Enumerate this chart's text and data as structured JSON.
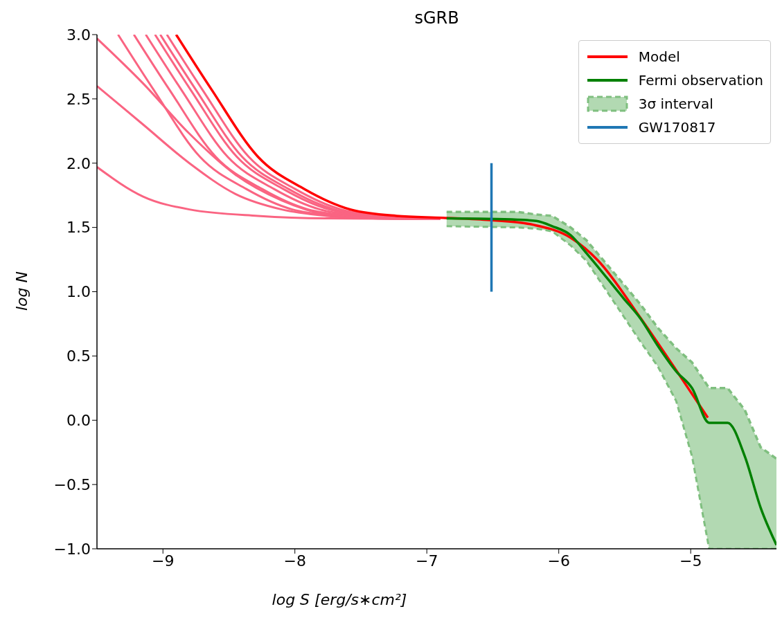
{
  "chart_data": {
    "type": "line",
    "title": "sGRB",
    "xlabel": "log S [erg/s∗cm²]",
    "ylabel": "log N",
    "xlim": [
      -9.5,
      -4.35
    ],
    "xticks": [
      -9,
      -8,
      -7,
      -6,
      -5
    ],
    "ylim": [
      -1.0,
      3.0
    ],
    "yticks": [
      {
        "value": -1.0,
        "label": "−1.0"
      },
      {
        "value": -0.5,
        "label": "−0.5"
      },
      {
        "value": 0.0,
        "label": "0.0"
      },
      {
        "value": 0.5,
        "label": "0.5"
      },
      {
        "value": 1.0,
        "label": "1.0"
      },
      {
        "value": 1.5,
        "label": "1.5"
      },
      {
        "value": 2.0,
        "label": "2.0"
      },
      {
        "value": 2.5,
        "label": "2.5"
      },
      {
        "value": 3.0,
        "label": "3.0"
      }
    ],
    "grid": false,
    "legend": "top right",
    "marker": "none",
    "line_style": "solid",
    "series": [
      {
        "color": "#fa6482",
        "x": [
          -9.5,
          -9.15,
          -8.8,
          -8.28,
          -7.76,
          -6.9
        ],
        "values": [
          1.97,
          1.74,
          1.64,
          1.59,
          1.57,
          1.565
        ]
      },
      {
        "color": "#fa6482",
        "x": [
          -9.5,
          -9.15,
          -8.8,
          -8.45,
          -8.1,
          -7.76,
          -7.41,
          -6.9
        ],
        "values": [
          2.6,
          2.3,
          2.0,
          1.76,
          1.64,
          1.59,
          1.57,
          1.565
        ]
      },
      {
        "color": "#fa6482",
        "x": [
          -9.5,
          -9.15,
          -8.8,
          -8.45,
          -8.1,
          -7.76,
          -7.41,
          -6.9
        ],
        "values": [
          2.97,
          2.62,
          2.23,
          1.91,
          1.71,
          1.6,
          1.57,
          1.565
        ]
      },
      {
        "color": "#fa6482",
        "x": [
          -9.34,
          -9.07,
          -8.72,
          -8.37,
          -8.02,
          -7.67,
          -7.32,
          -6.9
        ],
        "values": [
          3.0,
          2.57,
          2.05,
          1.8,
          1.64,
          1.59,
          1.57,
          1.565
        ]
      },
      {
        "color": "#fa6482",
        "x": [
          -9.22,
          -8.95,
          -8.6,
          -8.25,
          -7.9,
          -7.55,
          -7.2,
          -6.9
        ],
        "values": [
          3.0,
          2.57,
          2.05,
          1.8,
          1.64,
          1.59,
          1.57,
          1.565
        ]
      },
      {
        "color": "#fa6482",
        "x": [
          -9.13,
          -8.86,
          -8.51,
          -8.16,
          -7.81,
          -7.46,
          -7.11,
          -6.9
        ],
        "values": [
          3.0,
          2.57,
          2.05,
          1.8,
          1.64,
          1.59,
          1.57,
          1.565
        ]
      },
      {
        "color": "#fa6482",
        "x": [
          -9.06,
          -8.79,
          -8.44,
          -8.09,
          -7.74,
          -7.39,
          -7.04,
          -6.9
        ],
        "values": [
          3.0,
          2.57,
          2.05,
          1.8,
          1.64,
          1.59,
          1.57,
          1.565
        ]
      },
      {
        "color": "#fa6482",
        "x": [
          -9.02,
          -8.75,
          -8.4,
          -8.05,
          -7.7,
          -7.35,
          -7.0,
          -6.9
        ],
        "values": [
          3.0,
          2.57,
          2.05,
          1.8,
          1.64,
          1.59,
          1.57,
          1.565
        ]
      },
      {
        "color": "#fa6482",
        "x": [
          -8.97,
          -8.7,
          -8.35,
          -8.0,
          -7.65,
          -7.3,
          -6.95
        ],
        "values": [
          3.0,
          2.57,
          2.05,
          1.8,
          1.64,
          1.59,
          1.57
        ]
      },
      {
        "name": "Model",
        "color": "#ff0000",
        "x": [
          -8.9,
          -8.63,
          -8.28,
          -7.93,
          -7.58,
          -7.23,
          -6.88,
          -6.52,
          -6.19,
          -5.91,
          -5.7,
          -5.39,
          -5.13,
          -4.87
        ],
        "values": [
          3.0,
          2.57,
          2.05,
          1.8,
          1.64,
          1.59,
          1.575,
          1.557,
          1.52,
          1.42,
          1.24,
          0.81,
          0.42,
          0.02
        ]
      },
      {
        "name": "Fermi observation",
        "color": "#008000",
        "x": [
          -6.85,
          -6.31,
          -6.17,
          -6.05,
          -5.91,
          -5.79,
          -5.51,
          -5.38,
          -5.25,
          -5.11,
          -4.99,
          -4.86,
          -4.72,
          -4.59,
          -4.47,
          -4.35
        ],
        "values": [
          1.57,
          1.56,
          1.55,
          1.51,
          1.44,
          1.3,
          0.95,
          0.79,
          0.58,
          0.38,
          0.25,
          -0.02,
          -0.02,
          -0.28,
          -0.68,
          -0.97
        ],
        "upper": [
          1.62,
          1.62,
          1.6,
          1.59,
          1.5,
          1.4,
          1.06,
          0.9,
          0.72,
          0.56,
          0.45,
          0.25,
          0.25,
          0.08,
          -0.21,
          -0.3
        ],
        "lower": [
          1.51,
          1.5,
          1.49,
          1.47,
          1.36,
          1.24,
          0.81,
          0.61,
          0.42,
          0.15,
          -0.28,
          -1.0,
          -1.0,
          -1.0,
          -1.0,
          -1.0
        ]
      },
      {
        "name": "3σ interval",
        "color": "#7fbf7f",
        "line_style": "dashed",
        "x": [
          -6.85,
          -6.31,
          -6.17,
          -6.05,
          -5.91,
          -5.79,
          -5.51,
          -5.38,
          -5.25,
          -5.11,
          -4.99,
          -4.86,
          -4.72,
          -4.59,
          -4.47,
          -4.35
        ],
        "values": [
          1.62,
          1.62,
          1.6,
          1.59,
          1.5,
          1.4,
          1.06,
          0.9,
          0.72,
          0.56,
          0.45,
          0.25,
          0.25,
          0.08,
          -0.21,
          -0.3
        ]
      },
      {
        "color": "#7fbf7f",
        "line_style": "dashed",
        "x": [
          -6.85,
          -6.31,
          -6.17,
          -6.05,
          -5.91,
          -5.79,
          -5.51,
          -5.38,
          -5.25,
          -5.11,
          -4.99,
          -4.86,
          -4.72,
          -4.59,
          -4.47,
          -4.35
        ],
        "values": [
          1.51,
          1.5,
          1.49,
          1.47,
          1.36,
          1.24,
          0.81,
          0.61,
          0.42,
          0.15,
          -0.28,
          -1.0,
          -1.0,
          -1.0,
          -1.0,
          -1.0
        ]
      },
      {
        "name": "GW170817",
        "color": "#1f77b4",
        "x": [
          -6.51,
          -6.51
        ],
        "values": [
          1.0,
          2.0
        ]
      }
    ]
  }
}
